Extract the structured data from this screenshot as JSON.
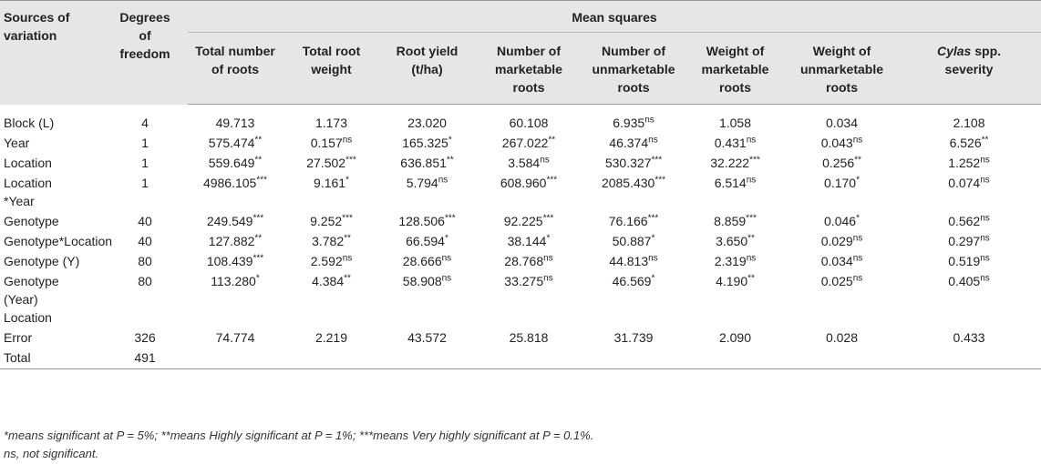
{
  "header": {
    "sources": [
      "Sources of",
      "variation"
    ],
    "degrees": [
      "Degrees",
      "of",
      "freedom"
    ],
    "mean_squares": "Mean squares",
    "columns": [
      [
        "Total number",
        "of roots"
      ],
      [
        "Total root",
        "weight"
      ],
      [
        "Root yield",
        "(t/ha)"
      ],
      [
        "Number of",
        "marketable",
        "roots"
      ],
      [
        "Number of",
        "unmarketable",
        "roots"
      ],
      [
        "Weight of",
        "marketable",
        "roots"
      ],
      [
        "Weight of",
        "unmarketable",
        "roots"
      ],
      [
        "Cylas",
        "spp.",
        "severity"
      ]
    ]
  },
  "rows": [
    {
      "source": [
        "Block (L)"
      ],
      "df": "4",
      "cells": [
        [
          "49.713",
          ""
        ],
        [
          "1.173",
          ""
        ],
        [
          "23.020",
          ""
        ],
        [
          "60.108",
          ""
        ],
        [
          "6.935",
          "ns"
        ],
        [
          "1.058",
          ""
        ],
        [
          "0.034",
          ""
        ],
        [
          "2.108",
          ""
        ]
      ]
    },
    {
      "source": [
        "Year"
      ],
      "df": "1",
      "cells": [
        [
          "575.474",
          "**"
        ],
        [
          "0.157",
          "ns"
        ],
        [
          "165.325",
          "*"
        ],
        [
          "267.022",
          "**"
        ],
        [
          "46.374",
          "ns"
        ],
        [
          "0.431",
          "ns"
        ],
        [
          "0.043",
          "ns"
        ],
        [
          "6.526",
          "**"
        ]
      ]
    },
    {
      "source": [
        "Location"
      ],
      "df": "1",
      "cells": [
        [
          "559.649",
          "**"
        ],
        [
          "27.502",
          "***"
        ],
        [
          "636.851",
          "**"
        ],
        [
          "3.584",
          "ns"
        ],
        [
          "530.327",
          "***"
        ],
        [
          "32.222",
          "***"
        ],
        [
          "0.256",
          "**"
        ],
        [
          "1.252",
          "ns"
        ]
      ]
    },
    {
      "source": [
        "Location",
        "*Year"
      ],
      "df": "1",
      "cells": [
        [
          "4986.105",
          "***"
        ],
        [
          "9.161",
          "*"
        ],
        [
          "5.794",
          "ns"
        ],
        [
          "608.960",
          "***"
        ],
        [
          "2085.430",
          "***"
        ],
        [
          "6.514",
          "ns"
        ],
        [
          "0.170",
          "*"
        ],
        [
          "0.074",
          "ns"
        ]
      ]
    },
    {
      "source": [
        "Genotype"
      ],
      "df": "40",
      "cells": [
        [
          "249.549",
          "***"
        ],
        [
          "9.252",
          "***"
        ],
        [
          "128.506",
          "***"
        ],
        [
          "92.225",
          "***"
        ],
        [
          "76.166",
          "***"
        ],
        [
          "8.859",
          "***"
        ],
        [
          "0.046",
          "*"
        ],
        [
          "0.562",
          "ns"
        ]
      ]
    },
    {
      "source": [
        "Genotype*Location"
      ],
      "df": "40",
      "cells": [
        [
          "127.882",
          "**"
        ],
        [
          "3.782",
          "**"
        ],
        [
          "66.594",
          "*"
        ],
        [
          "38.144",
          "*"
        ],
        [
          "50.887",
          "*"
        ],
        [
          "3.650",
          "**"
        ],
        [
          "0.029",
          "ns"
        ],
        [
          "0.297",
          "ns"
        ]
      ]
    },
    {
      "source": [
        "Genotype (Y)"
      ],
      "df": "80",
      "cells": [
        [
          "108.439",
          "***"
        ],
        [
          "2.592",
          "ns"
        ],
        [
          "28.666",
          "ns"
        ],
        [
          "28.768",
          "ns"
        ],
        [
          "44.813",
          "ns"
        ],
        [
          "2.319",
          "ns"
        ],
        [
          "0.034",
          "ns"
        ],
        [
          "0.519",
          "ns"
        ]
      ]
    },
    {
      "source": [
        "Genotype",
        "(Year)",
        "Location"
      ],
      "df": "80",
      "cells": [
        [
          "113.280",
          "*"
        ],
        [
          "4.384",
          "**"
        ],
        [
          "58.908",
          "ns"
        ],
        [
          "33.275",
          "ns"
        ],
        [
          "46.569",
          "*"
        ],
        [
          "4.190",
          "**"
        ],
        [
          "0.025",
          "ns"
        ],
        [
          "0.405",
          "ns"
        ]
      ]
    },
    {
      "source": [
        "Error"
      ],
      "df": "326",
      "cells": [
        [
          "74.774",
          ""
        ],
        [
          "2.219",
          ""
        ],
        [
          "43.572",
          ""
        ],
        [
          "25.818",
          ""
        ],
        [
          "31.739",
          ""
        ],
        [
          "2.090",
          ""
        ],
        [
          "0.028",
          ""
        ],
        [
          "0.433",
          ""
        ]
      ]
    },
    {
      "source": [
        "Total"
      ],
      "df": "491",
      "cells": [
        [
          "",
          ""
        ],
        [
          "",
          ""
        ],
        [
          "",
          ""
        ],
        [
          "",
          ""
        ],
        [
          "",
          ""
        ],
        [
          "",
          ""
        ],
        [
          "",
          ""
        ],
        [
          "",
          ""
        ]
      ]
    }
  ],
  "footnotes": [
    "*means significant at P = 5%; **means Highly significant at P = 1%; ***means Very highly significant at P = 0.1%.",
    "ns, not significant."
  ]
}
